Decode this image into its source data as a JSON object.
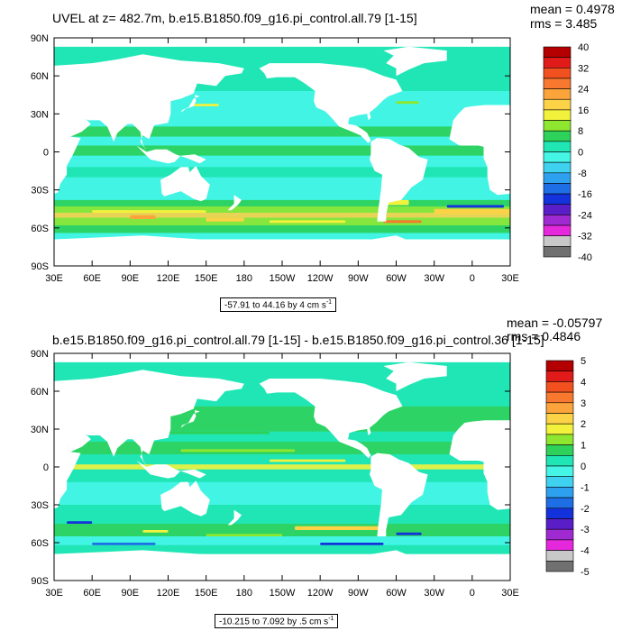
{
  "chart_data": [
    {
      "type": "heatmap",
      "title": "UVEL at z= 482.7m, b.e15.B1850.f09_g16.pi_control.all.79 [1-15]",
      "mean_text": "mean = 0.4978",
      "rms_text": "rms = 3.485",
      "range_text": "-57.91 to 44.16 by 4 cm s",
      "range_unit_exp": "-1",
      "x_ticks": [
        "30E",
        "60E",
        "90E",
        "120E",
        "150E",
        "180",
        "150W",
        "120W",
        "90W",
        "60W",
        "30W",
        "0",
        "30E"
      ],
      "y_ticks": [
        "90N",
        "60N",
        "30N",
        "0",
        "30S",
        "60S",
        "90S"
      ],
      "lon_range": [
        30,
        390
      ],
      "lat_range": [
        -90,
        90
      ],
      "colorbar_labels": [
        "40",
        "32",
        "24",
        "16",
        "8",
        "0",
        "-8",
        "-16",
        "-24",
        "-32",
        "-40"
      ],
      "colorbar_colors": [
        "#b40000",
        "#e11a1a",
        "#f2501e",
        "#f7782e",
        "#fca43c",
        "#fcd247",
        "#f2f23c",
        "#8fe62e",
        "#2ed25a",
        "#1fe6b4",
        "#45f5e6",
        "#3ed2f0",
        "#2ea0f0",
        "#1e6ee6",
        "#1432dc",
        "#5a1ec8",
        "#a02ad2",
        "#e628dc",
        "#c8c8c8",
        "#707070"
      ],
      "ocean_base_color": "#2ee6c8",
      "land_color": "#ffffff"
    },
    {
      "type": "heatmap",
      "title": "b.e15.B1850.f09_g16.pi_control.all.79 [1-15] - b.e15.B1850.f09_g16.pi_control.36 [1-15]",
      "mean_text": "mean = -0.05797",
      "rms_text": "rms = 0.4846",
      "range_text": "-10.215 to 7.092 by .5 cm s",
      "range_unit_exp": "-1",
      "x_ticks": [
        "30E",
        "60E",
        "90E",
        "120E",
        "150E",
        "180",
        "150W",
        "120W",
        "90W",
        "60W",
        "30W",
        "0",
        "30E"
      ],
      "y_ticks": [
        "90N",
        "60N",
        "30N",
        "0",
        "30S",
        "60S",
        "90S"
      ],
      "lon_range": [
        30,
        390
      ],
      "lat_range": [
        -90,
        90
      ],
      "colorbar_labels": [
        "5",
        "4",
        "3",
        "2",
        "1",
        "0",
        "-1",
        "-2",
        "-3",
        "-4",
        "-5"
      ],
      "colorbar_colors": [
        "#b40000",
        "#e11a1a",
        "#f2501e",
        "#f7782e",
        "#fca43c",
        "#fcd247",
        "#f2f23c",
        "#8fe62e",
        "#2ed25a",
        "#1fe6b4",
        "#45f5e6",
        "#3ed2f0",
        "#2ea0f0",
        "#1e6ee6",
        "#1432dc",
        "#5a1ec8",
        "#a02ad2",
        "#e628dc",
        "#c8c8c8",
        "#707070"
      ],
      "ocean_base_color": "#2ee6c8",
      "land_color": "#ffffff"
    }
  ]
}
